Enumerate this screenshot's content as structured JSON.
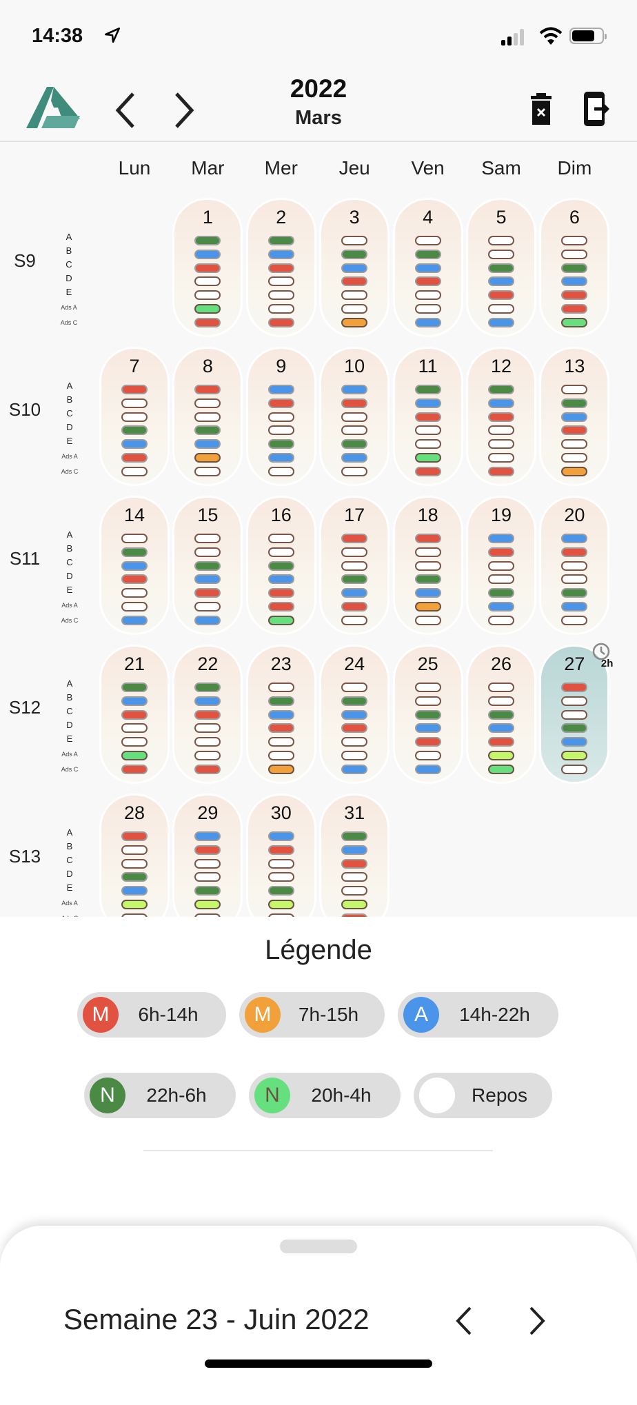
{
  "status_bar": {
    "time": "14:38",
    "signal_bars": 2,
    "battery_level": 0.8
  },
  "header": {
    "year": "2022",
    "month": "Mars",
    "logo_icon": "app-logo",
    "prev_icon": "chevron-left",
    "next_icon": "chevron-right",
    "delete_icon": "trash-x",
    "logout_icon": "exit-phone"
  },
  "weekdays": [
    "Lun",
    "Mar",
    "Mer",
    "Jeu",
    "Ven",
    "Sam",
    "Dim"
  ],
  "row_labels": [
    "A",
    "B",
    "C",
    "D",
    "E",
    "Ads A",
    "Ads C"
  ],
  "shift_colors": {
    "red": "#e15241",
    "orange": "#f2a03a",
    "blue": "#4a94ea",
    "green": "#4a8a44",
    "lightgreen": "#66e07e",
    "lime": "#c4f76a",
    "white": "#ffffff"
  },
  "weeks": [
    {
      "label": "S9",
      "start_weekday": 1,
      "days": [
        {
          "day": "1",
          "shifts": [
            "green",
            "blue",
            "red",
            "white",
            "white",
            "lightgreen",
            "red"
          ]
        },
        {
          "day": "2",
          "shifts": [
            "green",
            "blue",
            "red",
            "white",
            "white",
            "white",
            "red"
          ]
        },
        {
          "day": "3",
          "shifts": [
            "white",
            "green",
            "blue",
            "red",
            "white",
            "white",
            "orange"
          ]
        },
        {
          "day": "4",
          "shifts": [
            "white",
            "green",
            "blue",
            "red",
            "white",
            "white",
            "blue"
          ]
        },
        {
          "day": "5",
          "shifts": [
            "white",
            "white",
            "green",
            "blue",
            "red",
            "white",
            "blue"
          ]
        },
        {
          "day": "6",
          "shifts": [
            "white",
            "white",
            "green",
            "blue",
            "red",
            "red",
            "lightgreen"
          ]
        }
      ]
    },
    {
      "label": "S10",
      "start_weekday": 0,
      "days": [
        {
          "day": "7",
          "shifts": [
            "red",
            "white",
            "white",
            "green",
            "blue",
            "red",
            "white"
          ]
        },
        {
          "day": "8",
          "shifts": [
            "red",
            "white",
            "white",
            "green",
            "blue",
            "orange",
            "white"
          ]
        },
        {
          "day": "9",
          "shifts": [
            "blue",
            "red",
            "white",
            "white",
            "green",
            "blue",
            "white"
          ]
        },
        {
          "day": "10",
          "shifts": [
            "blue",
            "red",
            "white",
            "white",
            "green",
            "blue",
            "white"
          ]
        },
        {
          "day": "11",
          "shifts": [
            "green",
            "blue",
            "red",
            "white",
            "white",
            "lightgreen",
            "red"
          ]
        },
        {
          "day": "12",
          "shifts": [
            "green",
            "blue",
            "red",
            "white",
            "white",
            "white",
            "red"
          ]
        },
        {
          "day": "13",
          "shifts": [
            "white",
            "green",
            "blue",
            "red",
            "white",
            "white",
            "orange"
          ]
        }
      ]
    },
    {
      "label": "S11",
      "start_weekday": 0,
      "days": [
        {
          "day": "14",
          "shifts": [
            "white",
            "green",
            "blue",
            "red",
            "white",
            "white",
            "blue"
          ]
        },
        {
          "day": "15",
          "shifts": [
            "white",
            "white",
            "green",
            "blue",
            "red",
            "white",
            "blue"
          ]
        },
        {
          "day": "16",
          "shifts": [
            "white",
            "white",
            "green",
            "blue",
            "red",
            "red",
            "lightgreen"
          ]
        },
        {
          "day": "17",
          "shifts": [
            "red",
            "white",
            "white",
            "green",
            "blue",
            "red",
            "white"
          ]
        },
        {
          "day": "18",
          "shifts": [
            "red",
            "white",
            "white",
            "green",
            "blue",
            "orange",
            "white"
          ]
        },
        {
          "day": "19",
          "shifts": [
            "blue",
            "red",
            "white",
            "white",
            "green",
            "blue",
            "white"
          ]
        },
        {
          "day": "20",
          "shifts": [
            "blue",
            "red",
            "white",
            "white",
            "green",
            "blue",
            "white"
          ]
        }
      ]
    },
    {
      "label": "S12",
      "start_weekday": 0,
      "days": [
        {
          "day": "21",
          "shifts": [
            "green",
            "blue",
            "red",
            "white",
            "white",
            "lightgreen",
            "red"
          ]
        },
        {
          "day": "22",
          "shifts": [
            "green",
            "blue",
            "red",
            "white",
            "white",
            "white",
            "red"
          ]
        },
        {
          "day": "23",
          "shifts": [
            "white",
            "green",
            "blue",
            "red",
            "white",
            "white",
            "orange"
          ]
        },
        {
          "day": "24",
          "shifts": [
            "white",
            "green",
            "blue",
            "red",
            "white",
            "white",
            "blue"
          ]
        },
        {
          "day": "25",
          "shifts": [
            "white",
            "white",
            "green",
            "blue",
            "red",
            "white",
            "blue"
          ]
        },
        {
          "day": "26",
          "shifts": [
            "white",
            "white",
            "green",
            "blue",
            "red",
            "lime",
            "lightgreen"
          ]
        },
        {
          "day": "27",
          "today": true,
          "badge": "2h",
          "shifts": [
            "red",
            "white",
            "white",
            "green",
            "blue",
            "lime",
            "white"
          ]
        }
      ]
    },
    {
      "label": "S13",
      "start_weekday": 0,
      "days": [
        {
          "day": "28",
          "shifts": [
            "red",
            "white",
            "white",
            "green",
            "blue",
            "lime",
            "white"
          ]
        },
        {
          "day": "29",
          "shifts": [
            "blue",
            "red",
            "white",
            "white",
            "green",
            "lime",
            "white"
          ]
        },
        {
          "day": "30",
          "shifts": [
            "blue",
            "red",
            "white",
            "white",
            "green",
            "lime",
            "white"
          ]
        },
        {
          "day": "31",
          "shifts": [
            "green",
            "blue",
            "red",
            "white",
            "white",
            "lime",
            "red"
          ]
        }
      ]
    }
  ],
  "legend": {
    "title": "Légende",
    "items": [
      {
        "letter": "M",
        "label": "6h-14h",
        "color": "#e15241",
        "letter_color": "#ffffff"
      },
      {
        "letter": "M",
        "label": "7h-15h",
        "color": "#f2a03a",
        "letter_color": "#ffffff"
      },
      {
        "letter": "A",
        "label": "14h-22h",
        "color": "#4a94ea",
        "letter_color": "#ffffff"
      },
      {
        "letter": "N",
        "label": "22h-6h",
        "color": "#4a8a44",
        "letter_color": "#ffffff"
      },
      {
        "letter": "N",
        "label": "20h-4h",
        "color": "#66e07e",
        "letter_color": "#6b5044"
      },
      {
        "letter": "",
        "label": "Repos",
        "color": "#ffffff",
        "letter_color": "#ffffff"
      }
    ]
  },
  "bottom_sheet": {
    "week_title": "Semaine 23 - Juin 2022"
  }
}
